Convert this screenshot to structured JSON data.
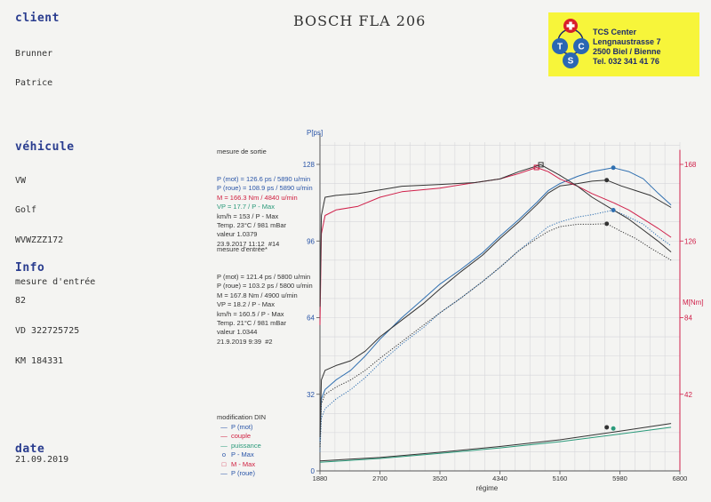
{
  "title": "BOSCH FLA 206",
  "client": {
    "label": "client",
    "lines": [
      "Brunner",
      "Patrice"
    ]
  },
  "vehicle": {
    "label": "véhicule",
    "lines": [
      "VW",
      "Golf",
      "WVWZZZ172",
      "",
      "82",
      "VD 322725725",
      "KM 184331"
    ]
  },
  "info": {
    "label": "Info",
    "lines": [
      "mesure d'entrée"
    ]
  },
  "date": {
    "label": "date",
    "value": "21.09.2019"
  },
  "logo": {
    "letters": [
      "T",
      "C",
      "S"
    ],
    "lines": [
      "TCS Center",
      "Lengnaustrasse 7",
      "2500 Biel / Bienne",
      "Tel. 032 341 41 76"
    ],
    "color": "#f7f53a"
  },
  "measure_out": {
    "heading": "mesure de sortie",
    "lines": [
      {
        "text": "P (mot) = 126.6 ps / 5890 u/min",
        "color": "#2a55a8"
      },
      {
        "text": "P (roue) = 108.9 ps / 5890 u/min",
        "color": "#2a55a8"
      },
      {
        "text": "M = 166.3 Nm / 4840 u/min",
        "color": "#d02040"
      },
      {
        "text": "VP = 17.7 / P - Max",
        "color": "#2a9a7a"
      },
      {
        "text": "km/h = 153 / P - Max",
        "color": "#333333"
      },
      {
        "text": "Temp. 23°C / 981 mBar",
        "color": "#333333"
      },
      {
        "text": "valeur 1.0379",
        "color": "#333333"
      },
      {
        "text": "23.9.2017 11:12  #14",
        "color": "#333333"
      }
    ]
  },
  "measure_in": {
    "heading": "mesure d'entrée*",
    "lines": [
      {
        "text": "P (mot) = 121.4 ps / 5800 u/min",
        "color": "#333333"
      },
      {
        "text": "P (roue) = 103.2 ps / 5800 u/min",
        "color": "#333333"
      },
      {
        "text": "M = 167.8 Nm / 4900 u/min",
        "color": "#333333"
      },
      {
        "text": "VP = 18.2 / P - Max",
        "color": "#333333"
      },
      {
        "text": "km/h = 160.5 / P - Max",
        "color": "#333333"
      },
      {
        "text": "Temp. 21°C / 981 mBar",
        "color": "#333333"
      },
      {
        "text": "valeur 1.0344",
        "color": "#333333"
      },
      {
        "text": "21.9.2019 9:39  #2",
        "color": "#333333"
      }
    ]
  },
  "legend": {
    "heading": "modification DIN",
    "items": [
      {
        "symbol": "—",
        "label": "P (mot)",
        "color": "#2a55a8"
      },
      {
        "symbol": "—",
        "label": "couple",
        "color": "#d02040"
      },
      {
        "symbol": "—",
        "label": "puissance",
        "color": "#2a9a7a"
      },
      {
        "symbol": "o",
        "label": "P - Max",
        "color": "#2a55a8"
      },
      {
        "symbol": "□",
        "label": "M - Max",
        "color": "#d02040"
      },
      {
        "symbol": "—",
        "label": "P (roue)",
        "color": "#2a55a8"
      }
    ]
  },
  "chart_data": {
    "type": "line",
    "xlabel": "régime",
    "ylabel_left": "P[ps]",
    "ylabel_right": "M[Nm]",
    "x_ticks": [
      1880,
      2700,
      3520,
      4340,
      5160,
      5980,
      6800
    ],
    "xlim": [
      1880,
      6800
    ],
    "y_left_ticks": [
      0,
      32,
      64,
      96,
      128
    ],
    "ylim_left": [
      0,
      128
    ],
    "y_right_ticks": [
      42,
      84,
      126,
      168
    ],
    "ylim_right": [
      0,
      168
    ],
    "grid": true,
    "colors": {
      "out": "#2f6fb0",
      "in": "#333333",
      "torque_out": "#d0204a",
      "vp": "#2a9a7a",
      "axis_right": "#d0204a"
    },
    "series": [
      {
        "name": "P (mot)",
        "kind": "power_mot_out",
        "x": [
          1880,
          1900,
          1950,
          2100,
          2300,
          2500,
          2700,
          3000,
          3300,
          3520,
          3800,
          4100,
          4340,
          4600,
          4840,
          5000,
          5160,
          5400,
          5600,
          5890,
          6100,
          6300,
          6500,
          6680
        ],
        "y": [
          12,
          30,
          34,
          38,
          42,
          48,
          55,
          64,
          72,
          78,
          84,
          91,
          98,
          105,
          112,
          117,
          120,
          123,
          125,
          126.6,
          125,
          122,
          116,
          111
        ]
      },
      {
        "name": "P (mot)",
        "kind": "power_mot_in",
        "x": [
          1880,
          1900,
          1950,
          2100,
          2300,
          2500,
          2700,
          3000,
          3300,
          3520,
          3800,
          4100,
          4340,
          4600,
          4840,
          5000,
          5160,
          5400,
          5600,
          5800,
          6000,
          6200,
          6400,
          6680
        ],
        "y": [
          14,
          38,
          42,
          44,
          46,
          50,
          56,
          63,
          70,
          76,
          83,
          90,
          97,
          104,
          111,
          116,
          119,
          120,
          121,
          121.4,
          119,
          117,
          115,
          110
        ]
      },
      {
        "name": "P (roue)",
        "kind": "power_roue_out",
        "x": [
          1880,
          1900,
          1950,
          2100,
          2300,
          2500,
          2700,
          3000,
          3300,
          3520,
          3800,
          4100,
          4340,
          4600,
          4840,
          5000,
          5160,
          5400,
          5600,
          5890,
          6100,
          6300,
          6500,
          6680
        ],
        "y": [
          8,
          22,
          26,
          30,
          34,
          39,
          45,
          53,
          60,
          66,
          72,
          79,
          85,
          92,
          98,
          102,
          104,
          106,
          107,
          108.9,
          106,
          103,
          98,
          94
        ]
      },
      {
        "name": "P (roue)",
        "kind": "power_roue_in",
        "x": [
          1880,
          1900,
          1950,
          2100,
          2300,
          2500,
          2700,
          3000,
          3300,
          3520,
          3800,
          4100,
          4340,
          4600,
          4840,
          5000,
          5160,
          5400,
          5600,
          5800,
          6000,
          6200,
          6400,
          6680
        ],
        "y": [
          10,
          28,
          32,
          35,
          38,
          42,
          47,
          54,
          61,
          66,
          72,
          79,
          85,
          92,
          97,
          100,
          102,
          103,
          103,
          103.2,
          100,
          97,
          93,
          88
        ]
      },
      {
        "name": "couple",
        "kind": "torque_out",
        "x": [
          1880,
          1900,
          1950,
          2100,
          2400,
          2700,
          3000,
          3520,
          4000,
          4340,
          4600,
          4840,
          5000,
          5160,
          5400,
          5600,
          5890,
          6100,
          6300,
          6500,
          6680
        ],
        "y": [
          80,
          130,
          140,
          143,
          145,
          150,
          153,
          155,
          158,
          160,
          163,
          166.3,
          164,
          160,
          156,
          152,
          147,
          143,
          138,
          133,
          128
        ]
      },
      {
        "name": "couple",
        "kind": "torque_in",
        "x": [
          1880,
          1900,
          1950,
          2100,
          2400,
          2700,
          3000,
          3520,
          4000,
          4340,
          4600,
          4900,
          5160,
          5400,
          5600,
          5890,
          6100,
          6300,
          6500,
          6680
        ],
        "y": [
          90,
          140,
          150,
          151,
          152,
          154,
          156,
          157,
          158,
          160,
          164,
          167.8,
          162,
          156,
          150,
          143,
          138,
          132,
          126,
          120
        ]
      },
      {
        "name": "puissance",
        "kind": "vp_out",
        "x": [
          1880,
          2700,
          3520,
          4340,
          5160,
          5980,
          6680
        ],
        "y": [
          3.6,
          5.2,
          7.3,
          9.6,
          12.2,
          15.4,
          18.2
        ]
      },
      {
        "name": "puissance",
        "kind": "vp_in",
        "x": [
          1880,
          2700,
          3520,
          4340,
          5160,
          5980,
          6680
        ],
        "y": [
          4.2,
          5.6,
          7.8,
          10.2,
          13.0,
          16.6,
          19.8
        ]
      }
    ],
    "markers": [
      {
        "x": 5890,
        "y": 126.6,
        "axis": "left",
        "shape": "circle",
        "color": "#2f6fb0"
      },
      {
        "x": 5800,
        "y": 121.4,
        "axis": "left",
        "shape": "circle",
        "color": "#333333"
      },
      {
        "x": 5890,
        "y": 108.9,
        "axis": "left",
        "shape": "circle",
        "color": "#2f6fb0"
      },
      {
        "x": 5800,
        "y": 103.2,
        "axis": "left",
        "shape": "circle",
        "color": "#333333"
      },
      {
        "x": 4840,
        "y": 166.3,
        "axis": "right",
        "shape": "square",
        "color": "#d0204a"
      },
      {
        "x": 4900,
        "y": 167.8,
        "axis": "right",
        "shape": "square",
        "color": "#333333"
      },
      {
        "x": 5890,
        "y": 17.7,
        "axis": "left",
        "shape": "circle",
        "color": "#2a9a7a"
      },
      {
        "x": 5800,
        "y": 18.2,
        "axis": "left",
        "shape": "circle",
        "color": "#333333"
      }
    ]
  }
}
